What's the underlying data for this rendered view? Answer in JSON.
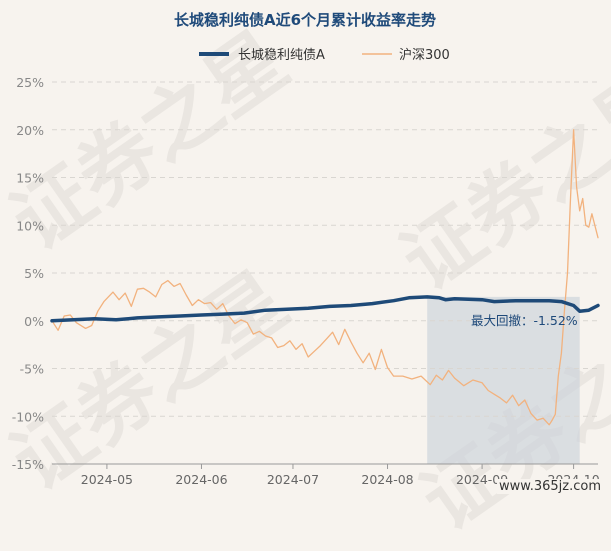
{
  "watermark": {
    "text": "证券之星"
  },
  "footer": {
    "site": "www.365jz.com"
  },
  "colors": {
    "bg": "#f7f3ee",
    "grid": "#d9d6d1",
    "fund": "#1e4a78",
    "index": "#f2b27e",
    "shade": "#cbd2da",
    "title": "#1f4a7a"
  },
  "chart_data": {
    "type": "line",
    "title": "长城稳利纯债A近6个月累计收益率走势",
    "xlabel": "",
    "ylabel": "",
    "yunit": "%",
    "ylim": [
      -15,
      25
    ],
    "yticks": [
      25,
      20,
      15,
      10,
      5,
      0,
      -5,
      -10,
      -15
    ],
    "ytick_labels": [
      "25%",
      "20%",
      "15%",
      "10%",
      "5%",
      "0%",
      "-5%",
      "-10%",
      "-15%"
    ],
    "xlim": [
      "2024-04-13",
      "2024-10-09"
    ],
    "xticks": [
      {
        "date": "2024-05-01",
        "label": "2024-05"
      },
      {
        "date": "2024-06-01",
        "label": "2024-06"
      },
      {
        "date": "2024-07-01",
        "label": "2024-07"
      },
      {
        "date": "2024-08-01",
        "label": "2024-08"
      },
      {
        "date": "2024-09-01",
        "label": "2024-09"
      },
      {
        "date": "2024-10-01",
        "label": "2024-10"
      }
    ],
    "legend": "top-center",
    "grid": "horizontal-dashed",
    "series": [
      {
        "name": "长城稳利纯债A",
        "points": [
          [
            "2024-04-13",
            0.0
          ],
          [
            "2024-04-20",
            0.1
          ],
          [
            "2024-04-27",
            0.2
          ],
          [
            "2024-05-04",
            0.1
          ],
          [
            "2024-05-11",
            0.3
          ],
          [
            "2024-05-18",
            0.4
          ],
          [
            "2024-05-25",
            0.5
          ],
          [
            "2024-06-01",
            0.6
          ],
          [
            "2024-06-08",
            0.7
          ],
          [
            "2024-06-15",
            0.8
          ],
          [
            "2024-06-22",
            1.1
          ],
          [
            "2024-06-29",
            1.2
          ],
          [
            "2024-07-06",
            1.3
          ],
          [
            "2024-07-13",
            1.5
          ],
          [
            "2024-07-20",
            1.6
          ],
          [
            "2024-07-27",
            1.8
          ],
          [
            "2024-08-03",
            2.1
          ],
          [
            "2024-08-08",
            2.4
          ],
          [
            "2024-08-14",
            2.5
          ],
          [
            "2024-08-18",
            2.4
          ],
          [
            "2024-08-20",
            2.2
          ],
          [
            "2024-08-23",
            2.3
          ],
          [
            "2024-09-01",
            2.2
          ],
          [
            "2024-09-05",
            2.0
          ],
          [
            "2024-09-12",
            2.1
          ],
          [
            "2024-09-19",
            2.1
          ],
          [
            "2024-09-23",
            2.1
          ],
          [
            "2024-09-27",
            2.0
          ],
          [
            "2024-10-01",
            1.6
          ],
          [
            "2024-10-03",
            1.0
          ],
          [
            "2024-10-06",
            1.1
          ],
          [
            "2024-10-09",
            1.6
          ]
        ]
      },
      {
        "name": "沪深300",
        "points": [
          [
            "2024-04-13",
            0.0
          ],
          [
            "2024-04-15",
            -1.0
          ],
          [
            "2024-04-17",
            0.5
          ],
          [
            "2024-04-19",
            0.6
          ],
          [
            "2024-04-21",
            -0.2
          ],
          [
            "2024-04-24",
            -0.8
          ],
          [
            "2024-04-26",
            -0.5
          ],
          [
            "2024-04-28",
            1.0
          ],
          [
            "2024-04-30",
            2.0
          ],
          [
            "2024-05-03",
            3.0
          ],
          [
            "2024-05-05",
            2.2
          ],
          [
            "2024-05-07",
            2.9
          ],
          [
            "2024-05-09",
            1.5
          ],
          [
            "2024-05-11",
            3.3
          ],
          [
            "2024-05-13",
            3.4
          ],
          [
            "2024-05-15",
            3.0
          ],
          [
            "2024-05-17",
            2.5
          ],
          [
            "2024-05-19",
            3.8
          ],
          [
            "2024-05-21",
            4.2
          ],
          [
            "2024-05-23",
            3.6
          ],
          [
            "2024-05-25",
            3.9
          ],
          [
            "2024-05-27",
            2.7
          ],
          [
            "2024-05-29",
            1.6
          ],
          [
            "2024-05-31",
            2.2
          ],
          [
            "2024-06-02",
            1.8
          ],
          [
            "2024-06-04",
            1.9
          ],
          [
            "2024-06-06",
            1.2
          ],
          [
            "2024-06-08",
            1.8
          ],
          [
            "2024-06-10",
            0.5
          ],
          [
            "2024-06-12",
            -0.3
          ],
          [
            "2024-06-14",
            0.1
          ],
          [
            "2024-06-16",
            -0.2
          ],
          [
            "2024-06-18",
            -1.4
          ],
          [
            "2024-06-20",
            -1.1
          ],
          [
            "2024-06-22",
            -1.6
          ],
          [
            "2024-06-24",
            -1.8
          ],
          [
            "2024-06-26",
            -2.8
          ],
          [
            "2024-06-28",
            -2.6
          ],
          [
            "2024-06-30",
            -2.1
          ],
          [
            "2024-07-02",
            -3.0
          ],
          [
            "2024-07-04",
            -2.4
          ],
          [
            "2024-07-06",
            -3.8
          ],
          [
            "2024-07-08",
            -3.2
          ],
          [
            "2024-07-10",
            -2.6
          ],
          [
            "2024-07-12",
            -1.9
          ],
          [
            "2024-07-14",
            -1.2
          ],
          [
            "2024-07-16",
            -2.5
          ],
          [
            "2024-07-18",
            -0.9
          ],
          [
            "2024-07-20",
            -2.2
          ],
          [
            "2024-07-22",
            -3.4
          ],
          [
            "2024-07-24",
            -4.4
          ],
          [
            "2024-07-26",
            -3.4
          ],
          [
            "2024-07-28",
            -5.1
          ],
          [
            "2024-07-30",
            -3.0
          ],
          [
            "2024-08-01",
            -4.9
          ],
          [
            "2024-08-03",
            -5.8
          ],
          [
            "2024-08-06",
            -5.8
          ],
          [
            "2024-08-09",
            -6.1
          ],
          [
            "2024-08-12",
            -5.8
          ],
          [
            "2024-08-15",
            -6.7
          ],
          [
            "2024-08-17",
            -5.7
          ],
          [
            "2024-08-19",
            -6.2
          ],
          [
            "2024-08-21",
            -5.2
          ],
          [
            "2024-08-23",
            -6.0
          ],
          [
            "2024-08-26",
            -6.8
          ],
          [
            "2024-08-29",
            -6.2
          ],
          [
            "2024-09-01",
            -6.5
          ],
          [
            "2024-09-03",
            -7.3
          ],
          [
            "2024-09-05",
            -7.7
          ],
          [
            "2024-09-07",
            -8.1
          ],
          [
            "2024-09-09",
            -8.6
          ],
          [
            "2024-09-11",
            -7.8
          ],
          [
            "2024-09-13",
            -8.9
          ],
          [
            "2024-09-15",
            -8.3
          ],
          [
            "2024-09-17",
            -9.7
          ],
          [
            "2024-09-19",
            -10.4
          ],
          [
            "2024-09-21",
            -10.2
          ],
          [
            "2024-09-23",
            -10.9
          ],
          [
            "2024-09-24",
            -10.4
          ],
          [
            "2024-09-25",
            -9.8
          ],
          [
            "2024-09-26",
            -5.8
          ],
          [
            "2024-09-27",
            -3.4
          ],
          [
            "2024-09-28",
            1.0
          ],
          [
            "2024-09-29",
            5.0
          ],
          [
            "2024-09-30",
            12.8
          ],
          [
            "2024-10-01",
            20.0
          ],
          [
            "2024-10-02",
            14.0
          ],
          [
            "2024-10-03",
            11.5
          ],
          [
            "2024-10-04",
            12.8
          ],
          [
            "2024-10-05",
            10.0
          ],
          [
            "2024-10-06",
            9.8
          ],
          [
            "2024-10-07",
            11.2
          ],
          [
            "2024-10-09",
            8.7
          ]
        ]
      }
    ],
    "drawdown": {
      "start": "2024-08-14",
      "end": "2024-10-03",
      "label": "最大回撤：-1.52%"
    }
  }
}
